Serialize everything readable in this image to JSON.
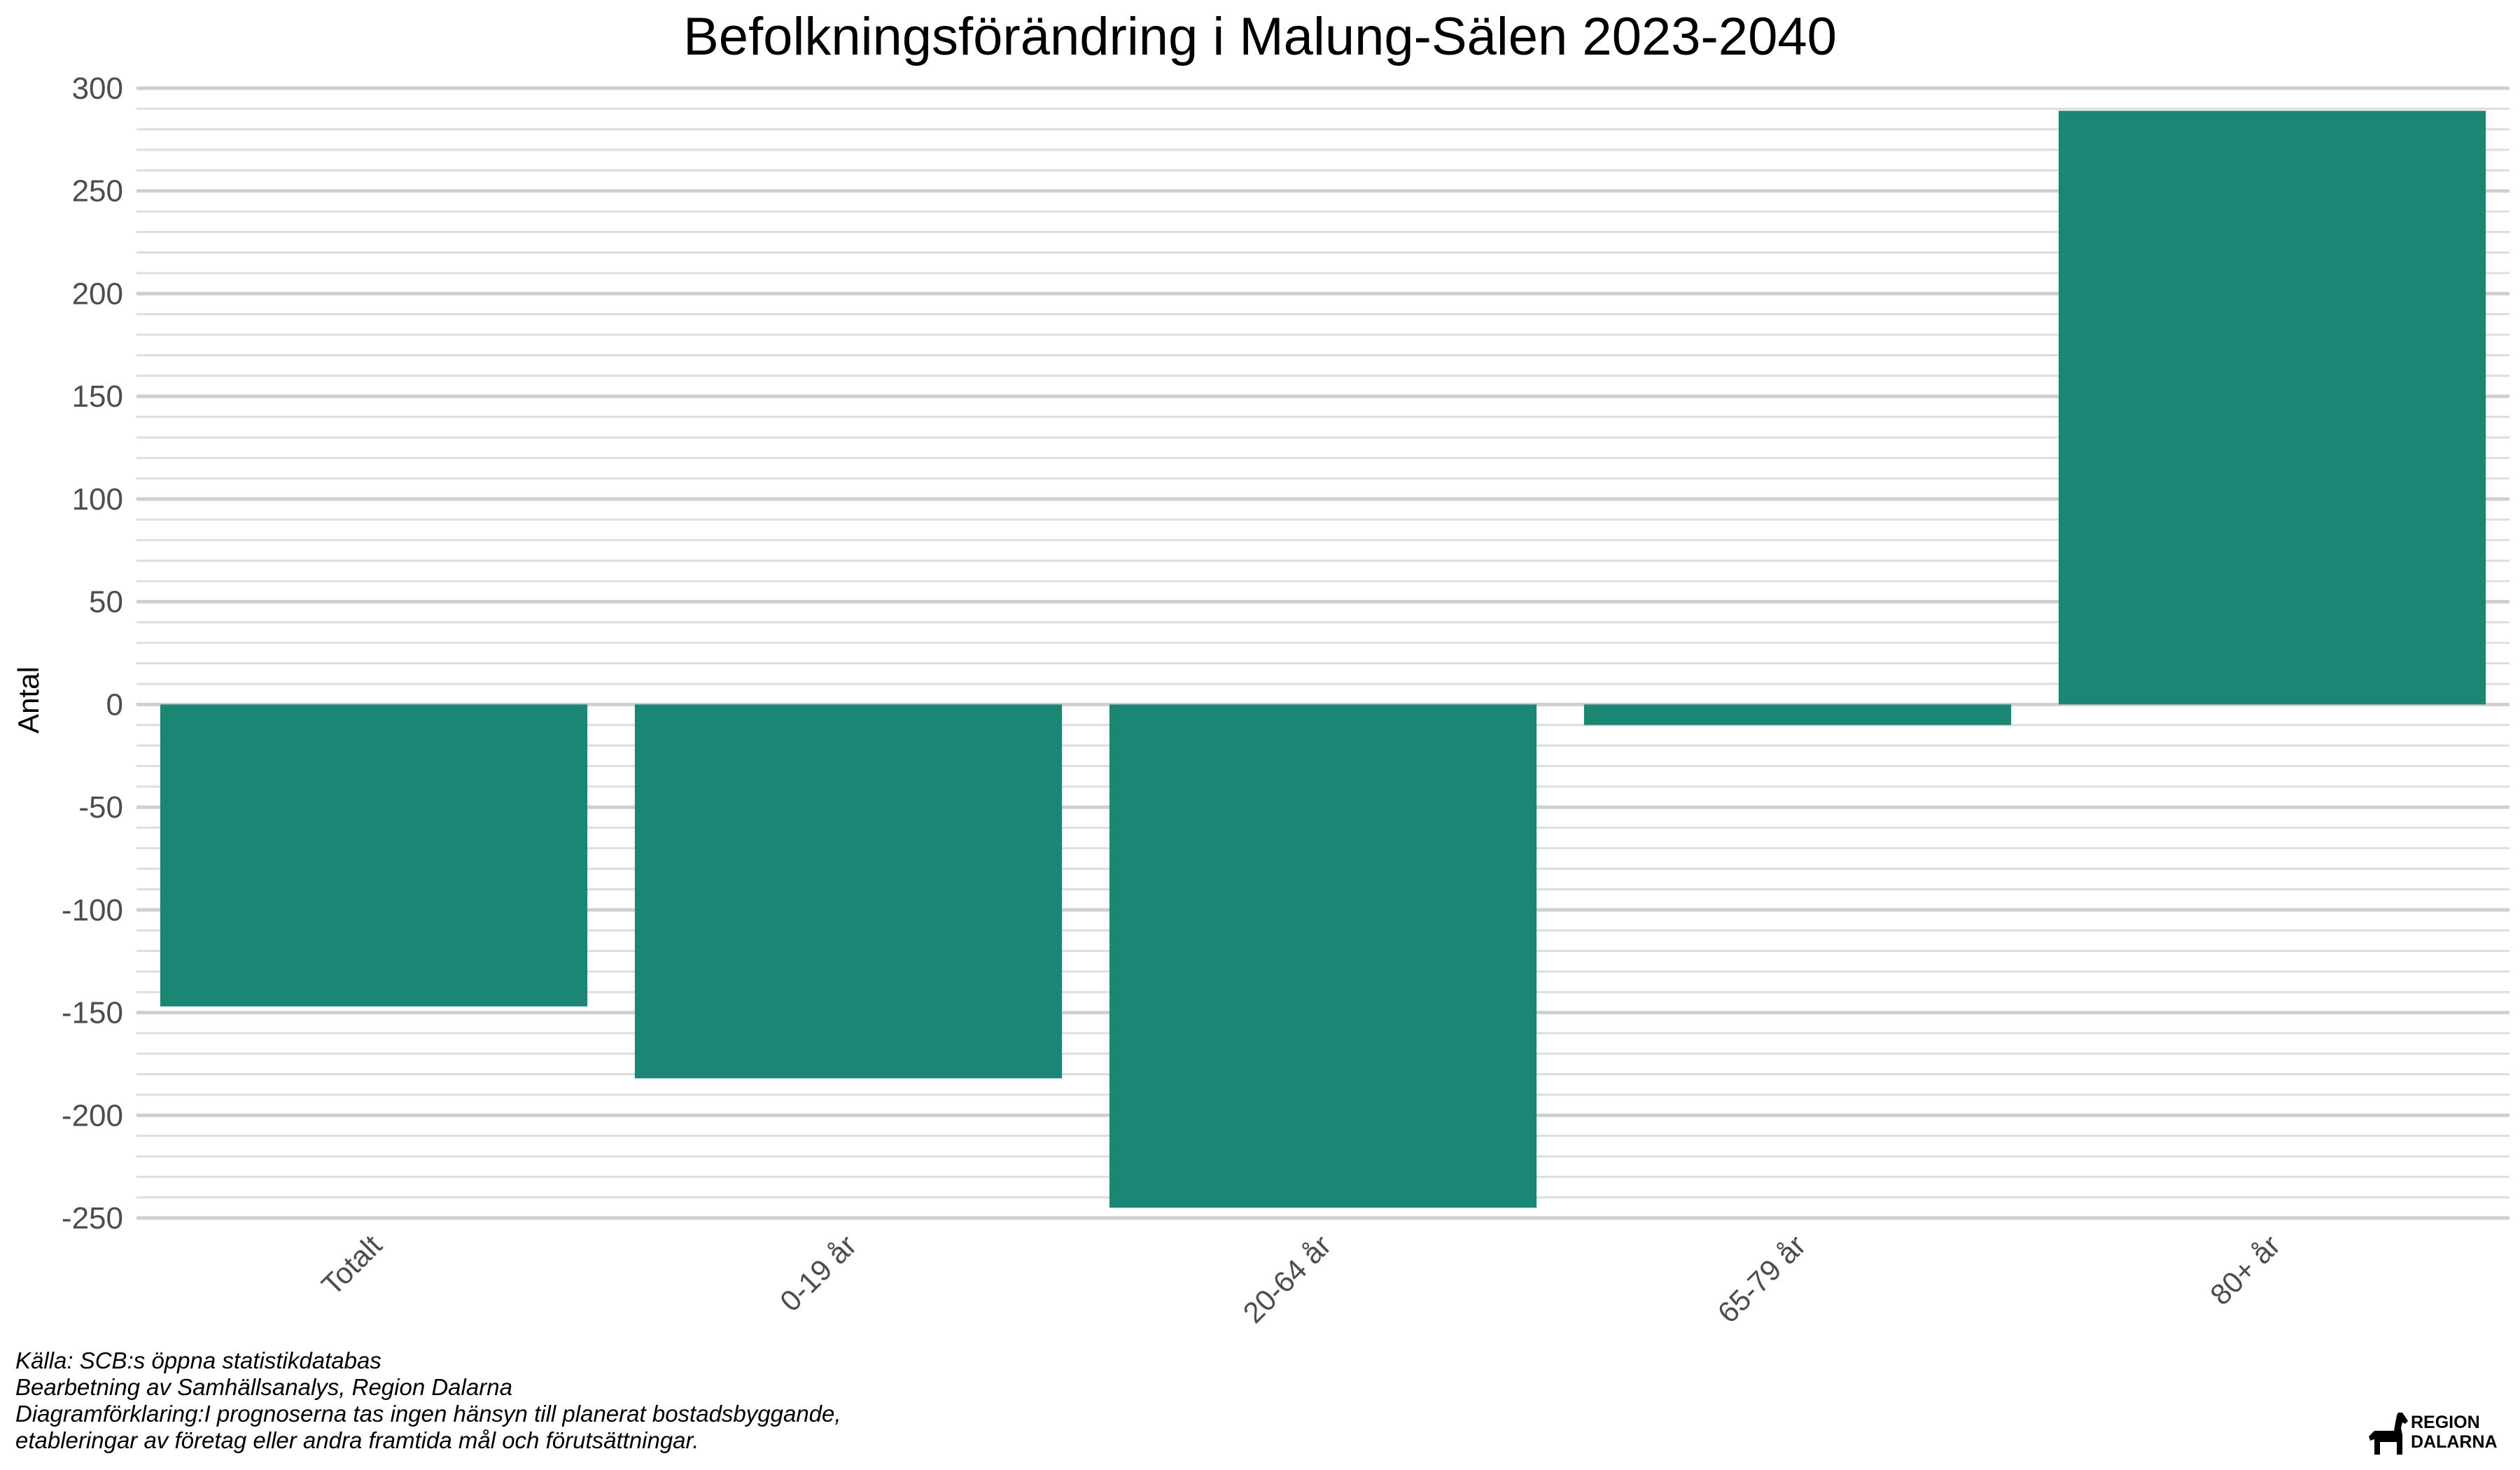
{
  "chart_data": {
    "type": "bar",
    "title": "Befolkningsförändring i Malung-Sälen 2023-2040",
    "xlabel": "",
    "ylabel": "Antal",
    "categories": [
      "Totalt",
      "0-19 år",
      "20-64 år",
      "65-79 år",
      "80+ år"
    ],
    "values": [
      -147,
      -182,
      -245,
      -10,
      289
    ],
    "ylim": [
      -250,
      300
    ],
    "yticks": [
      -250,
      -200,
      -150,
      -100,
      -50,
      0,
      50,
      100,
      150,
      200,
      250,
      300
    ],
    "grid": true,
    "bar_color": "#1a8673",
    "legend": "none"
  },
  "caption": {
    "line1": "Källa: SCB:s öppna statistikdatabas",
    "line2": "Bearbetning av Samhällsanalys, Region Dalarna",
    "line3": "Diagramförklaring:I prognoserna tas ingen hänsyn till planerat bostadsbyggande,",
    "line4": "etableringar av företag eller andra framtida mål och förutsättningar."
  },
  "logo": {
    "line1": "REGION",
    "line2": "DALARNA"
  }
}
